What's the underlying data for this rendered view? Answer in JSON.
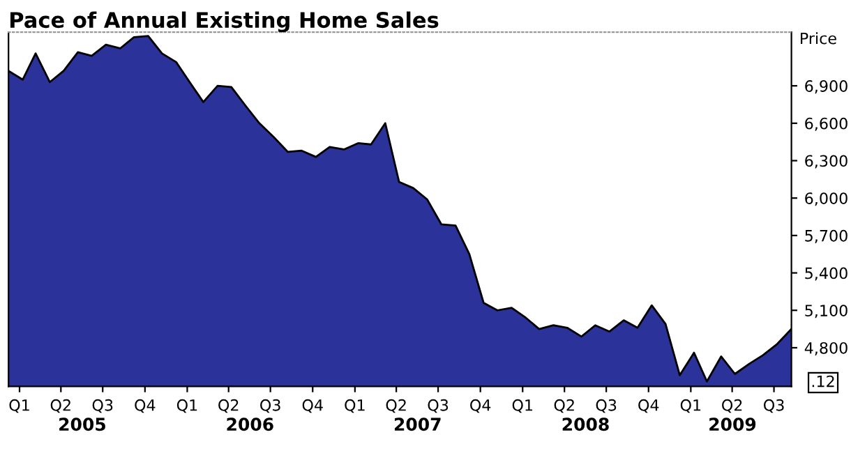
{
  "chart_data": {
    "type": "area",
    "title": "Pace of Annual Existing Home Sales",
    "ylabel": "Price",
    "x": [
      "2005-01",
      "2005-02",
      "2005-03",
      "2005-04",
      "2005-05",
      "2005-06",
      "2005-07",
      "2005-08",
      "2005-09",
      "2005-10",
      "2005-11",
      "2005-12",
      "2006-01",
      "2006-02",
      "2006-03",
      "2006-04",
      "2006-05",
      "2006-06",
      "2006-07",
      "2006-08",
      "2006-09",
      "2006-10",
      "2006-11",
      "2006-12",
      "2007-01",
      "2007-02",
      "2007-03",
      "2007-04",
      "2007-05",
      "2007-06",
      "2007-07",
      "2007-08",
      "2007-09",
      "2007-10",
      "2007-11",
      "2007-12",
      "2008-01",
      "2008-02",
      "2008-03",
      "2008-04",
      "2008-05",
      "2008-06",
      "2008-07",
      "2008-08",
      "2008-09",
      "2008-10",
      "2008-11",
      "2008-12",
      "2009-01",
      "2009-02",
      "2009-03",
      "2009-04",
      "2009-05",
      "2009-06",
      "2009-07",
      "2009-08",
      "2009-09"
    ],
    "series": [
      {
        "color": "#2b3299",
        "values": [
          7020,
          6950,
          7160,
          6930,
          7020,
          7170,
          7140,
          7230,
          7200,
          7290,
          7300,
          7160,
          7090,
          6920,
          6770,
          6900,
          6890,
          6740,
          6600,
          6490,
          6370,
          6380,
          6330,
          6410,
          6390,
          6440,
          6430,
          6600,
          6130,
          6080,
          5990,
          5790,
          5780,
          5550,
          5160,
          5100,
          5120,
          5040,
          4950,
          4980,
          4960,
          4890,
          4980,
          4930,
          5020,
          4960,
          5140,
          4990,
          4580,
          4760,
          4530,
          4730,
          4590,
          4670,
          4740,
          4830,
          4950
        ]
      }
    ],
    "ylim": [
      4490,
      7330
    ],
    "yticks": [
      {
        "value": 4800,
        "label": "4,800"
      },
      {
        "value": 5100,
        "label": "5,100"
      },
      {
        "value": 5400,
        "label": "5,400"
      },
      {
        "value": 5700,
        "label": "5,700"
      },
      {
        "value": 6000,
        "label": "6,000"
      },
      {
        "value": 6300,
        "label": "6,300"
      },
      {
        "value": 6600,
        "label": "6,600"
      },
      {
        "value": 6900,
        "label": "6,900"
      }
    ],
    "xlim": [
      "2005-01",
      "2009-09"
    ],
    "xticks": [
      {
        "value": "2005-01-25",
        "label": "Q1"
      },
      {
        "value": "2005-04-25",
        "label": "Q2"
      },
      {
        "value": "2005-07-25",
        "label": "Q3"
      },
      {
        "value": "2005-10-25",
        "label": "Q4"
      },
      {
        "value": "2006-01-25",
        "label": "Q1"
      },
      {
        "value": "2006-04-25",
        "label": "Q2"
      },
      {
        "value": "2006-07-25",
        "label": "Q3"
      },
      {
        "value": "2006-10-25",
        "label": "Q4"
      },
      {
        "value": "2007-01-25",
        "label": "Q1"
      },
      {
        "value": "2007-04-25",
        "label": "Q2"
      },
      {
        "value": "2007-07-25",
        "label": "Q3"
      },
      {
        "value": "2007-10-25",
        "label": "Q4"
      },
      {
        "value": "2008-01-25",
        "label": "Q1"
      },
      {
        "value": "2008-04-25",
        "label": "Q2"
      },
      {
        "value": "2008-07-25",
        "label": "Q3"
      },
      {
        "value": "2008-10-25",
        "label": "Q4"
      },
      {
        "value": "2009-01-25",
        "label": "Q1"
      },
      {
        "value": "2009-04-25",
        "label": "Q2"
      },
      {
        "value": "2009-07-25",
        "label": "Q3"
      }
    ],
    "annotations": [
      "2005",
      "2006",
      "2007",
      "2008",
      "2009",
      {
        "text": ".12",
        "x": "2009-09",
        "y": 4520
      }
    ],
    "grid": false,
    "legend": false
  }
}
